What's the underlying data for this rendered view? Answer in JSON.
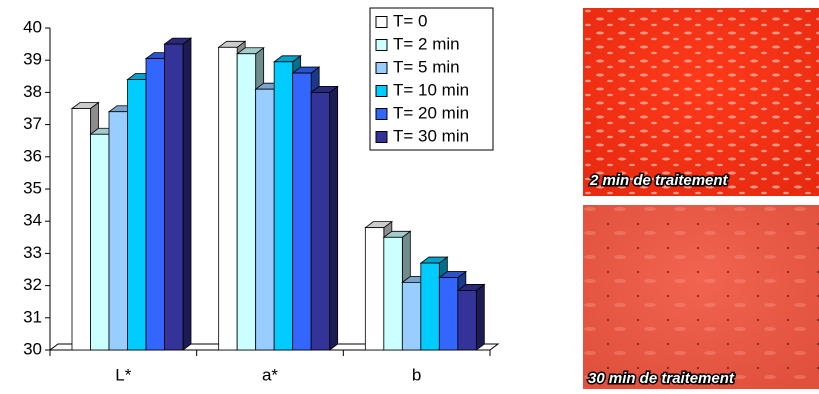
{
  "chart_data": {
    "type": "bar3d",
    "categories": [
      "L*",
      "a*",
      "b"
    ],
    "series": [
      {
        "name": "T= 0",
        "color": "#ffffff",
        "values": [
          37.5,
          39.4,
          33.8
        ]
      },
      {
        "name": "T= 2 min",
        "color": "#ccffff",
        "values": [
          36.7,
          39.2,
          33.5
        ]
      },
      {
        "name": "T= 5 min",
        "color": "#99ccff",
        "values": [
          37.4,
          38.1,
          32.1
        ]
      },
      {
        "name": "T= 10 min",
        "color": "#00ccff",
        "values": [
          38.4,
          38.95,
          32.7
        ]
      },
      {
        "name": "T= 20 min",
        "color": "#3366ff",
        "values": [
          39.05,
          38.6,
          32.25
        ]
      },
      {
        "name": "T= 30 min",
        "color": "#333399",
        "values": [
          39.5,
          38.0,
          31.85
        ]
      }
    ],
    "ylim": [
      30,
      40
    ],
    "yticks": [
      30,
      31,
      32,
      33,
      34,
      35,
      36,
      37,
      38,
      39,
      40
    ]
  },
  "images": [
    {
      "caption": "2 min de traitement"
    },
    {
      "caption": "30 min de traitement"
    }
  ]
}
